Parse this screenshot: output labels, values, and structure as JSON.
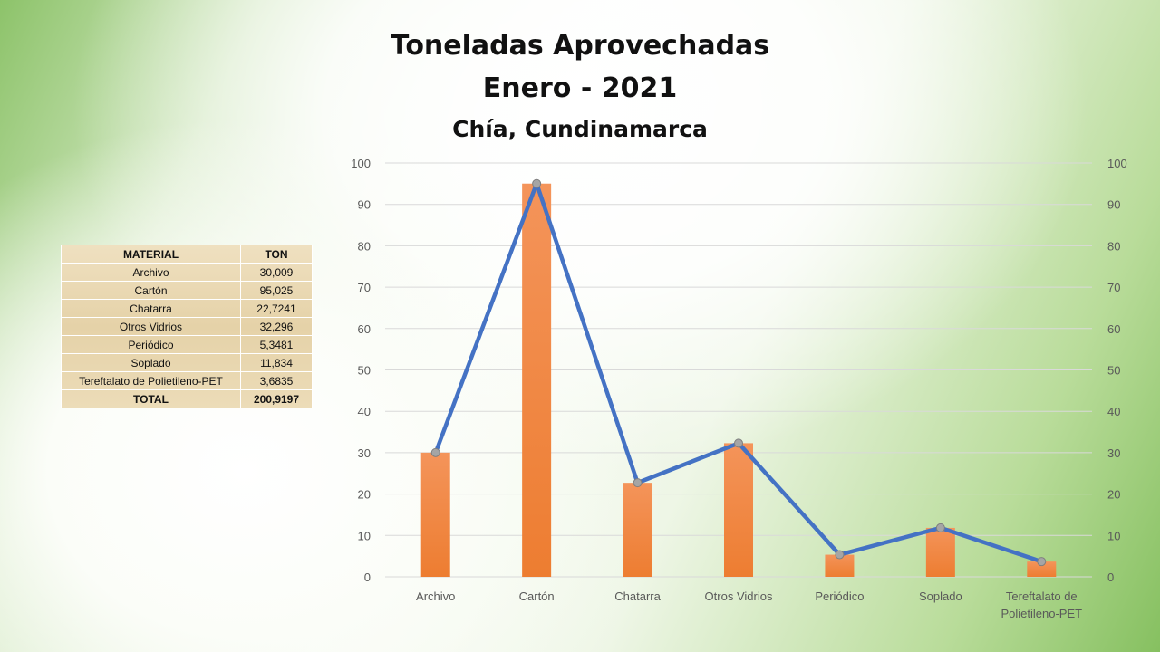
{
  "title_lines": [
    "Toneladas Aprovechadas",
    "Enero - 2021",
    "Chía, Cundinamarca"
  ],
  "table": {
    "headers": [
      "MATERIAL",
      "TON"
    ],
    "rows": [
      [
        "Archivo",
        "30,009"
      ],
      [
        "Cartón",
        "95,025"
      ],
      [
        "Chatarra",
        "22,7241"
      ],
      [
        "Otros Vidrios",
        "32,296"
      ],
      [
        "Periódico",
        "5,3481"
      ],
      [
        "Soplado",
        "11,834"
      ],
      [
        "Tereftalato de Polietileno-PET",
        "3,6835"
      ]
    ],
    "total": [
      "TOTAL",
      "200,9197"
    ]
  },
  "chart_data": {
    "type": "bar",
    "categories": [
      "Archivo",
      "Cartón",
      "Chatarra",
      "Otros Vidrios",
      "Periódico",
      "Soplado",
      "Tereftalato de Polietileno-PET"
    ],
    "category_label_lines": [
      [
        "Archivo"
      ],
      [
        "Cartón"
      ],
      [
        "Chatarra"
      ],
      [
        "Otros Vidrios"
      ],
      [
        "Periódico"
      ],
      [
        "Soplado"
      ],
      [
        "Tereftalato de",
        "Polietileno-PET"
      ]
    ],
    "series": [
      {
        "type": "bar",
        "values": [
          30.009,
          95.025,
          22.7241,
          32.296,
          5.3481,
          11.834,
          3.6835
        ],
        "color": "#ed7d31"
      },
      {
        "type": "line",
        "values": [
          30.009,
          95.025,
          22.7241,
          32.296,
          5.3481,
          11.834,
          3.6835
        ],
        "color": "#4472c4"
      }
    ],
    "ylim": [
      0,
      100
    ],
    "yticks": [
      0,
      10,
      20,
      30,
      40,
      50,
      60,
      70,
      80,
      90,
      100
    ],
    "secondary_axis": true,
    "grid": true,
    "colors": {
      "bar": "#ed7d31",
      "line": "#4472c4",
      "marker": "#a5a5a5",
      "grid": "#d9d9d9",
      "tick_text": "#595959"
    }
  }
}
